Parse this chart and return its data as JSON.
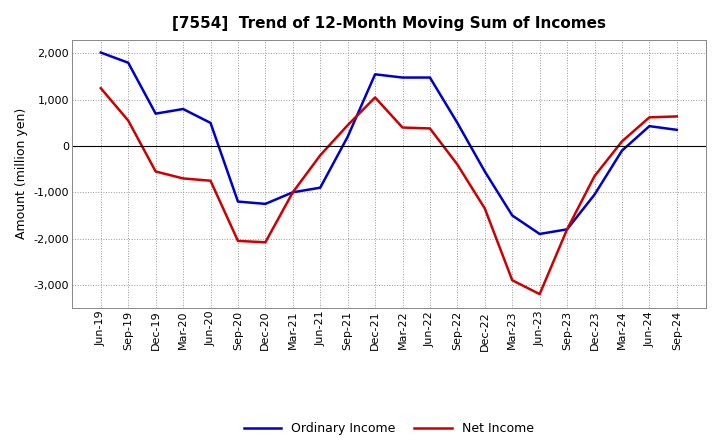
{
  "title": "[7554]  Trend of 12-Month Moving Sum of Incomes",
  "xlabel": "",
  "ylabel": "Amount (million yen)",
  "x_labels": [
    "Jun-19",
    "Sep-19",
    "Dec-19",
    "Mar-20",
    "Jun-20",
    "Sep-20",
    "Dec-20",
    "Mar-21",
    "Jun-21",
    "Sep-21",
    "Dec-21",
    "Mar-22",
    "Jun-22",
    "Sep-22",
    "Dec-22",
    "Mar-23",
    "Jun-23",
    "Sep-23",
    "Dec-23",
    "Mar-24",
    "Jun-24",
    "Sep-24"
  ],
  "ordinary_income": [
    2020,
    1800,
    700,
    800,
    500,
    -1200,
    -1250,
    -1000,
    -900,
    200,
    1550,
    1480,
    1480,
    500,
    -550,
    -1500,
    -1900,
    -1800,
    -1050,
    -100,
    430,
    350
  ],
  "net_income": [
    1250,
    550,
    -550,
    -700,
    -750,
    -2050,
    -2080,
    -1000,
    -200,
    450,
    1050,
    400,
    380,
    -400,
    -1350,
    -2900,
    -3200,
    -1800,
    -650,
    100,
    620,
    640
  ],
  "ordinary_income_color": "#0000cc",
  "net_income_color": "#cc0000",
  "line_width": 1.8,
  "ylim": [
    -3500,
    2300
  ],
  "yticks": [
    -3000,
    -2000,
    -1000,
    0,
    1000,
    2000
  ],
  "background_color": "#ffffff",
  "grid_color": "#999999",
  "legend_ordinary": "Ordinary Income",
  "legend_net": "Net Income",
  "title_fontsize": 11,
  "ylabel_fontsize": 9,
  "tick_fontsize": 8,
  "legend_fontsize": 9
}
